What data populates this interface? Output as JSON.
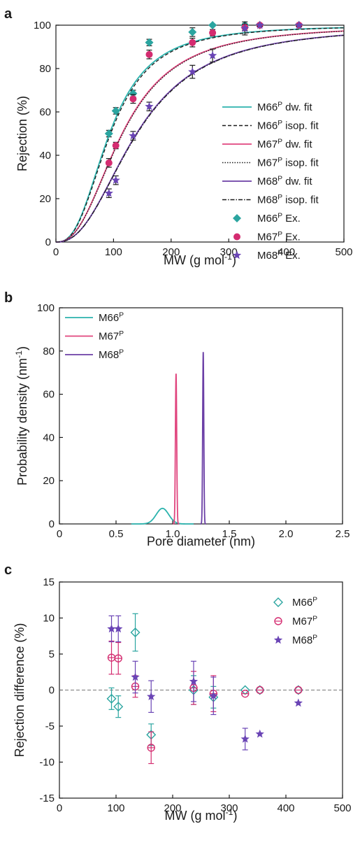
{
  "chart_data": [
    {
      "panel": "a",
      "type": "line",
      "xlabel": "MW (g mol",
      "xlabel_sup": "-1",
      "xlabel_end": ")",
      "ylabel": "Rejection (%)",
      "xlim": [
        0,
        500
      ],
      "ylim": [
        0,
        100
      ],
      "xticks": [
        0,
        100,
        200,
        300,
        400,
        500
      ],
      "yticks": [
        0,
        20,
        40,
        60,
        80,
        100
      ],
      "legend_position": "right",
      "fit_curves": [
        {
          "name": "M66",
          "sup": "P",
          "suffix": " dw. fit",
          "color": "#2bb3ad",
          "dash": "solid",
          "mw50": 93,
          "k": 2.64
        },
        {
          "name": "M66",
          "sup": "P",
          "suffix": " isop. fit",
          "color": "#1a1a1a",
          "dash": "dashed",
          "mw50": 95,
          "k": 2.64
        },
        {
          "name": "M67",
          "sup": "P",
          "suffix": " dw. fit",
          "color": "#e0457e",
          "dash": "solid",
          "mw50": 115,
          "k": 2.44
        },
        {
          "name": "M67",
          "sup": "P",
          "suffix": " isop. fit",
          "color": "#1a1a1a",
          "dash": "dotted",
          "mw50": 116,
          "k": 2.44
        },
        {
          "name": "M68",
          "sup": "P",
          "suffix": " dw. fit",
          "color": "#6b3fa6",
          "dash": "solid",
          "mw50": 140,
          "k": 2.38
        },
        {
          "name": "M68",
          "sup": "P",
          "suffix": " isop. fit",
          "color": "#1a1a1a",
          "dash": "dashdot",
          "mw50": 141,
          "k": 2.38
        }
      ],
      "experimental": [
        {
          "name": "M66",
          "sup": "P",
          "suffix": " Ex.",
          "color": "#2ba5a0",
          "marker": "diamond",
          "points": [
            [
              92,
              50,
              1.5
            ],
            [
              104,
              60.5,
              1.5
            ],
            [
              134,
              68.5,
              1.5
            ],
            [
              162,
              92,
              1.5
            ],
            [
              237,
              96.8,
              2
            ],
            [
              272,
              100,
              0.5
            ],
            [
              328,
              100,
              0.5
            ],
            [
              354,
              100,
              0.5
            ],
            [
              422,
              100,
              0.5
            ]
          ]
        },
        {
          "name": "M67",
          "sup": "P",
          "suffix": " Ex.",
          "color": "#d42c70",
          "marker": "circle",
          "points": [
            [
              92,
              36.5,
              2
            ],
            [
              104,
              44.5,
              1.5
            ],
            [
              134,
              66,
              2
            ],
            [
              162,
              86.5,
              2
            ],
            [
              237,
              92,
              2
            ],
            [
              272,
              96.5,
              1.5
            ],
            [
              328,
              99,
              1.5
            ],
            [
              354,
              100,
              0.5
            ],
            [
              422,
              100,
              0.5
            ]
          ]
        },
        {
          "name": "M68",
          "sup": "P",
          "suffix": " Ex.",
          "color": "#6a44b5",
          "marker": "star",
          "points": [
            [
              92,
              22.5,
              2
            ],
            [
              104,
              28.5,
              2
            ],
            [
              134,
              49,
              2
            ],
            [
              162,
              62.5,
              2
            ],
            [
              237,
              78.5,
              3
            ],
            [
              272,
              86,
              3
            ],
            [
              328,
              98.5,
              3
            ],
            [
              354,
              100,
              0.5
            ],
            [
              422,
              100,
              0.5
            ]
          ]
        }
      ]
    },
    {
      "panel": "b",
      "type": "line",
      "xlabel": "Pore diameter (nm)",
      "ylabel": "Probability density (nm",
      "ylabel_sup": "-1",
      "ylabel_end": ")",
      "xlim": [
        0,
        2.5
      ],
      "ylim": [
        0,
        100
      ],
      "xticks": [
        "0",
        "0.5",
        "1.0",
        "1.5",
        "2.0",
        "2.5"
      ],
      "yticks": [
        0,
        20,
        40,
        60,
        80,
        100
      ],
      "legend_position": "top-left",
      "series": [
        {
          "name": "M66",
          "sup": "P",
          "color": "#2bb3ad",
          "mean": 0.91,
          "peak": 7.2,
          "sigma": 0.055
        },
        {
          "name": "M67",
          "sup": "P",
          "color": "#e0457e",
          "mean": 1.03,
          "peak": 69.5,
          "sigma": 0.0057
        },
        {
          "name": "M68",
          "sup": "P",
          "color": "#6b3fa6",
          "mean": 1.27,
          "peak": 79.5,
          "sigma": 0.005
        }
      ]
    },
    {
      "panel": "c",
      "type": "scatter",
      "xlabel": "MW (g mol",
      "xlabel_sup": "-1",
      "xlabel_end": ")",
      "ylabel": "Rejection difference (%)",
      "xlim": [
        0,
        500
      ],
      "ylim": [
        -15,
        15
      ],
      "xticks": [
        0,
        100,
        200,
        300,
        400,
        500
      ],
      "yticks": [
        -15,
        -10,
        -5,
        0,
        5,
        10,
        15
      ],
      "zero_line": true,
      "legend_position": "top-right",
      "series": [
        {
          "name": "M66",
          "sup": "P",
          "color": "#2ba5a0",
          "marker": "diamond-open",
          "points": [
            [
              92,
              -1.2,
              1.5
            ],
            [
              104,
              -2.3,
              1.5
            ],
            [
              134,
              8,
              2.6
            ],
            [
              162,
              -6.2,
              1.5
            ],
            [
              237,
              0,
              2
            ],
            [
              272,
              -1,
              1.5
            ],
            [
              328,
              0,
              0.2
            ],
            [
              354,
              0,
              0.2
            ],
            [
              422,
              0,
              0.2
            ]
          ]
        },
        {
          "name": "M67",
          "sup": "P",
          "color": "#d42c70",
          "marker": "circle-open",
          "points": [
            [
              92,
              4.5,
              2.3
            ],
            [
              104,
              4.4,
              2.2
            ],
            [
              134,
              0.5,
              1.5
            ],
            [
              162,
              -8,
              2.2
            ],
            [
              237,
              0.3,
              2.3
            ],
            [
              272,
              -0.5,
              2.5
            ],
            [
              328,
              -0.5,
              0.2
            ],
            [
              354,
              0,
              0.2
            ],
            [
              422,
              0,
              0.2
            ]
          ]
        },
        {
          "name": "M68",
          "sup": "P",
          "color": "#6a44b5",
          "marker": "star",
          "points": [
            [
              92,
              8.5,
              1.8
            ],
            [
              104,
              8.5,
              1.8
            ],
            [
              134,
              1.8,
              2.2
            ],
            [
              162,
              -0.9,
              2.2
            ],
            [
              237,
              1.2,
              2.8
            ],
            [
              272,
              -0.8,
              2.6
            ],
            [
              328,
              -6.8,
              1.5
            ],
            [
              354,
              -6.1,
              0.2
            ],
            [
              422,
              -1.8,
              0.2
            ]
          ]
        }
      ]
    }
  ],
  "panels": {
    "a": {
      "label": "a"
    },
    "b": {
      "label": "b"
    },
    "c": {
      "label": "c"
    }
  }
}
